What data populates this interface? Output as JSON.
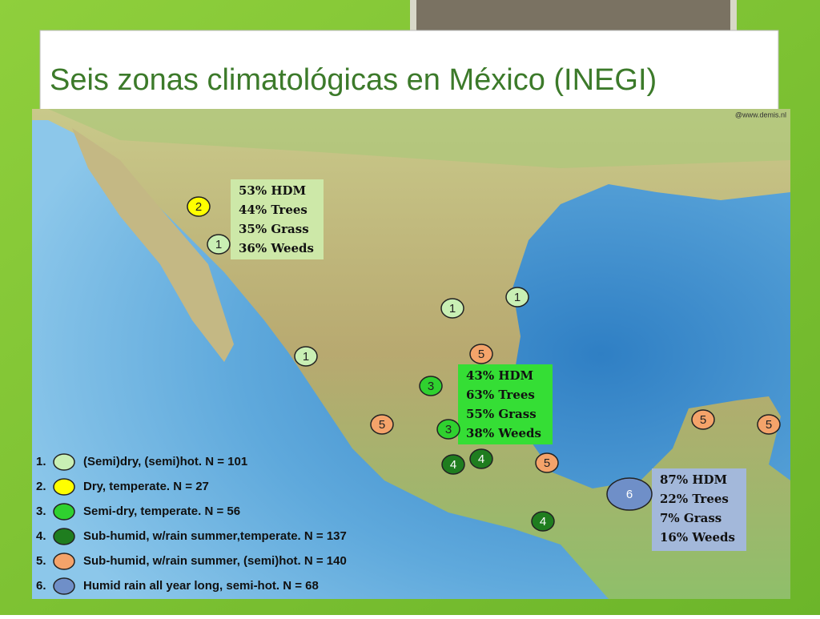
{
  "title": "Seis zonas climatológicas en México (INEGI)",
  "credit": "@www.demis.nl",
  "markers": [
    {
      "label": "2",
      "zone": 2
    },
    {
      "label": "1",
      "zone": 1
    },
    {
      "label": "1",
      "zone": 1
    },
    {
      "label": "1",
      "zone": 1
    },
    {
      "label": "1",
      "zone": 1
    },
    {
      "label": "5",
      "zone": 5
    },
    {
      "label": "3",
      "zone": 3
    },
    {
      "label": "5",
      "zone": 5
    },
    {
      "label": "3",
      "zone": 3
    },
    {
      "label": "4",
      "zone": 4
    },
    {
      "label": "4",
      "zone": 4
    },
    {
      "label": "5",
      "zone": 5
    },
    {
      "label": "4",
      "zone": 4
    },
    {
      "label": "6",
      "zone": 6
    },
    {
      "label": "5",
      "zone": 5
    },
    {
      "label": "5",
      "zone": 5
    }
  ],
  "info_boxes": [
    {
      "lines": [
        "53% HDM",
        "44% Trees",
        "35% Grass",
        "36% Weeds"
      ]
    },
    {
      "lines": [
        "43% HDM",
        "63% Trees",
        "55% Grass",
        "38% Weeds"
      ]
    },
    {
      "lines": [
        "87% HDM",
        "22% Trees",
        "7% Grass",
        "16% Weeds"
      ]
    }
  ],
  "legend": [
    {
      "number": "1.",
      "text": "(Semi)dry, (semi)hot. N = 101",
      "color": "#c9efb4"
    },
    {
      "number": "2.",
      "text": "Dry, temperate. N = 27",
      "color": "#ffff00"
    },
    {
      "number": "3.",
      "text": "Semi-dry, temperate. N = 56",
      "color": "#2fd12f"
    },
    {
      "number": "4.",
      "text": "Sub-humid, w/rain summer,temperate. N = 137",
      "color": "#1f7d1f"
    },
    {
      "number": "5.",
      "text": "Sub-humid, w/rain summer, (semi)hot. N = 140",
      "color": "#f4a36a"
    },
    {
      "number": "6.",
      "text": "Humid rain all year long, semi-hot. N = 68",
      "color": "#6f8fc8"
    }
  ]
}
